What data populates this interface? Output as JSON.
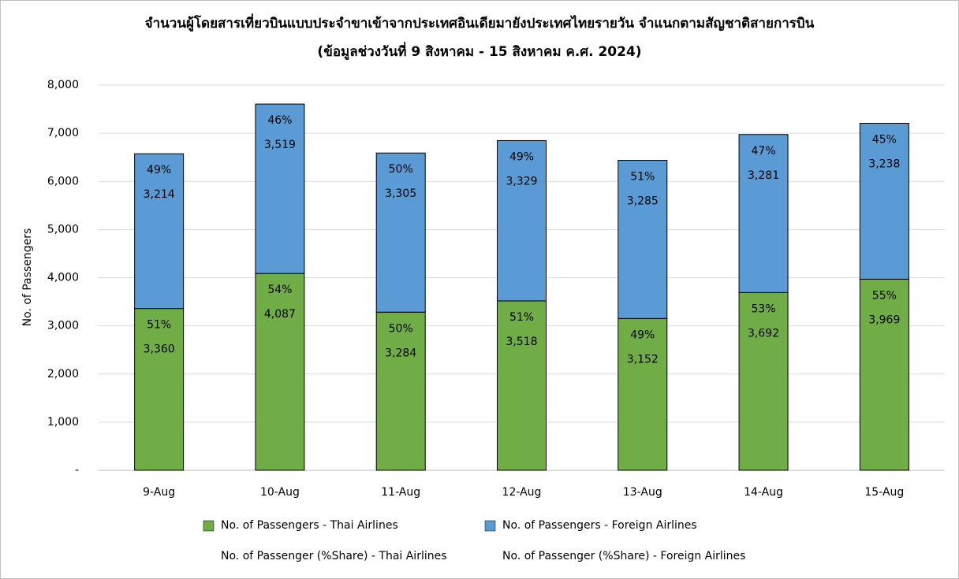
{
  "chart_data": {
    "type": "bar",
    "stacked": true,
    "title": "จำนวนผู้โดยสารเที่ยวบินแบบประจำขาเข้าจากประเทศอินเดียมายังประเทศไทยรายวัน  จำแนกตามสัญชาติสายการบิน",
    "subtitle": "(ข้อมูลช่วงวันที่ 9 สิงหาคม - 15 สิงหาคม ค.ศ. 2024)",
    "y_label": "No. of Passengers",
    "categories": [
      "9-Aug",
      "10-Aug",
      "11-Aug",
      "12-Aug",
      "13-Aug",
      "14-Aug",
      "15-Aug"
    ],
    "series": [
      {
        "name": "No. of Passengers - Thai Airlines",
        "color": "#70ad47",
        "values": [
          3360,
          4087,
          3284,
          3518,
          3152,
          3692,
          3969
        ],
        "value_labels": [
          "3,360",
          "4,087",
          "3,284",
          "3,518",
          "3,152",
          "3,692",
          "3,969"
        ]
      },
      {
        "name": "No. of Passengers - Foreign Airlines",
        "color": "#5b9bd5",
        "values": [
          3214,
          3519,
          3305,
          3329,
          3285,
          3281,
          3238
        ],
        "value_labels": [
          "3,214",
          "3,519",
          "3,305",
          "3,329",
          "3,285",
          "3,281",
          "3,238"
        ]
      }
    ],
    "share_series": [
      {
        "name": "No. of Passenger (%Share) - Thai Airlines",
        "values": [
          51,
          54,
          50,
          51,
          49,
          53,
          55
        ],
        "value_labels": [
          "51%",
          "54%",
          "50%",
          "51%",
          "49%",
          "53%",
          "55%"
        ]
      },
      {
        "name": "No. of Passenger (%Share) - Foreign Airlines",
        "values": [
          49,
          46,
          50,
          49,
          51,
          47,
          45
        ],
        "value_labels": [
          "49%",
          "46%",
          "50%",
          "49%",
          "51%",
          "47%",
          "45%"
        ]
      }
    ],
    "ylim": [
      0,
      8000
    ],
    "yticks": [
      {
        "value": 0,
        "label": "-"
      },
      {
        "value": 1000,
        "label": "1,000"
      },
      {
        "value": 2000,
        "label": "2,000"
      },
      {
        "value": 3000,
        "label": "3,000"
      },
      {
        "value": 4000,
        "label": "4,000"
      },
      {
        "value": 5000,
        "label": "5,000"
      },
      {
        "value": 6000,
        "label": "6,000"
      },
      {
        "value": 7000,
        "label": "7,000"
      },
      {
        "value": 8000,
        "label": "8,000"
      }
    ],
    "grid": true,
    "legend": "bottom"
  }
}
